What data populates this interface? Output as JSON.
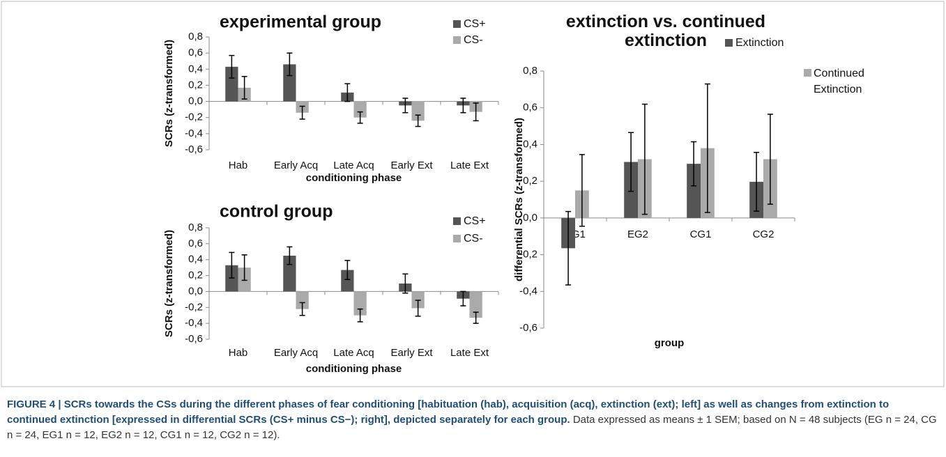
{
  "chart_data": [
    {
      "type": "bar",
      "title": "experimental group",
      "xlabel": "conditioning phase",
      "ylabel": "SCRs (z-transformed)",
      "categories": [
        "Hab",
        "Early Acq",
        "Late Acq",
        "Early Ext",
        "Late Ext"
      ],
      "series": [
        {
          "name": "CS+",
          "color": "#555555",
          "values": [
            0.43,
            0.46,
            0.11,
            -0.05,
            -0.05
          ],
          "errors": [
            0.14,
            0.14,
            0.11,
            0.09,
            0.09
          ]
        },
        {
          "name": "CS-",
          "color": "#aaaaaa",
          "values": [
            0.17,
            -0.14,
            -0.2,
            -0.24,
            -0.13
          ],
          "errors": [
            0.14,
            0.08,
            0.07,
            0.07,
            0.11
          ]
        }
      ],
      "ylim": [
        -0.6,
        0.8
      ],
      "yticks": [
        {
          "value": 0.8,
          "label": "0,8"
        },
        {
          "value": 0.6,
          "label": "0,6"
        },
        {
          "value": 0.4,
          "label": "0,4"
        },
        {
          "value": 0.2,
          "label": "0,2"
        },
        {
          "value": 0,
          "label": "0,0"
        },
        {
          "value": -0.2,
          "label": "-0,2"
        },
        {
          "value": -0.4,
          "label": "-0,4"
        },
        {
          "value": -0.6,
          "label": "-0,6"
        }
      ]
    },
    {
      "type": "bar",
      "title": "control group",
      "xlabel": "conditioning phase",
      "ylabel": "SCRs (z-transformed)",
      "categories": [
        "Hab",
        "Early Acq",
        "Late Acq",
        "Early Ext",
        "Late Ext"
      ],
      "series": [
        {
          "name": "CS+",
          "color": "#555555",
          "values": [
            0.33,
            0.45,
            0.27,
            0.1,
            -0.09
          ],
          "errors": [
            0.16,
            0.11,
            0.12,
            0.12,
            0.09
          ]
        },
        {
          "name": "CS-",
          "color": "#aaaaaa",
          "values": [
            0.3,
            -0.22,
            -0.3,
            -0.21,
            -0.33
          ],
          "errors": [
            0.16,
            0.08,
            0.08,
            0.1,
            0.07
          ]
        }
      ],
      "ylim": [
        -0.6,
        0.8
      ],
      "yticks": [
        {
          "value": 0.8,
          "label": "0,8"
        },
        {
          "value": 0.6,
          "label": "0,6"
        },
        {
          "value": 0.4,
          "label": "0,4"
        },
        {
          "value": 0.2,
          "label": "0,2"
        },
        {
          "value": 0,
          "label": "0,0"
        },
        {
          "value": -0.2,
          "label": "-0,2"
        },
        {
          "value": -0.4,
          "label": "-0,4"
        },
        {
          "value": -0.6,
          "label": "-0,6"
        }
      ]
    },
    {
      "type": "bar",
      "title": "extinction vs. continued extinction",
      "xlabel": "group",
      "ylabel": "differential SCRs (z-transformed)",
      "categories": [
        "EG1",
        "EG2",
        "CG1",
        "CG2"
      ],
      "series": [
        {
          "name": "Extinction",
          "color": "#555555",
          "values": [
            -0.165,
            0.305,
            0.295,
            0.197
          ],
          "errors": [
            0.2,
            0.16,
            0.12,
            0.16
          ]
        },
        {
          "name": "Continued Extinction",
          "color": "#aaaaaa",
          "values": [
            0.15,
            0.32,
            0.38,
            0.32
          ],
          "errors": [
            0.195,
            0.3,
            0.35,
            0.245
          ]
        }
      ],
      "ylim": [
        -0.6,
        0.8
      ],
      "yticks": [
        {
          "value": 0.8,
          "label": "0,8"
        },
        {
          "value": 0.6,
          "label": "0,6"
        },
        {
          "value": 0.4,
          "label": "0,4"
        },
        {
          "value": 0.2,
          "label": "0,2"
        },
        {
          "value": 0,
          "label": "0,0"
        },
        {
          "value": -0.2,
          "label": "-0,2"
        },
        {
          "value": -0.4,
          "label": "-0,4"
        },
        {
          "value": -0.6,
          "label": "-0,6"
        }
      ]
    }
  ],
  "caption": {
    "bold": "FIGURE 4 | SCRs towards the CSs during the different phases of fear conditioning [habituation (hab), acquisition (acq), extinction (ext); left] as well as changes from extinction to continued extinction [expressed in differential SCRs (CS+ minus CS−); right], depicted separately for each group.",
    "text": " Data expressed as means ± 1 SEM; based on N = 48 subjects (EG n = 24, CG n = 24, EG1 n = 12, EG2 n = 12, CG1 n = 12, CG2 n = 12)."
  }
}
